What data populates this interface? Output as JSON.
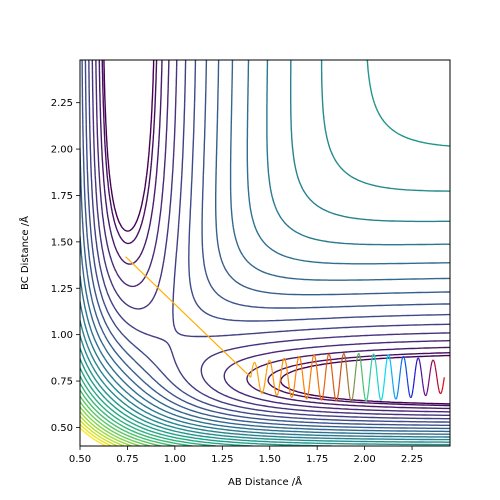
{
  "chart_data": {
    "type": "line",
    "title": "",
    "xlabel": "AB Distance /Å",
    "ylabel": "BC Distance /Å",
    "xlim": [
      0.5,
      2.45
    ],
    "ylim": [
      0.4,
      2.48
    ],
    "xticks": [
      0.5,
      0.75,
      1.0,
      1.25,
      1.5,
      1.75,
      2.0,
      2.25
    ],
    "yticks": [
      0.5,
      0.75,
      1.0,
      1.25,
      1.5,
      1.75,
      2.0,
      2.25
    ],
    "xtick_labels": [
      "0.50",
      "0.75",
      "1.00",
      "1.25",
      "1.50",
      "1.75",
      "2.00",
      "2.25"
    ],
    "ytick_labels": [
      "0.50",
      "0.75",
      "1.00",
      "1.25",
      "1.50",
      "1.75",
      "2.00",
      "2.25"
    ],
    "grid": false,
    "contour": {
      "description": "potential energy surface contour lines (viridis colormap)",
      "n_levels": 28,
      "colormap": "viridis"
    },
    "trajectory": {
      "description": "reaction trajectory with oscillations (autumn colormap)",
      "start": [
        0.74,
        1.42
      ],
      "end": [
        2.42,
        0.72
      ],
      "colormap": "autumn+jet"
    }
  }
}
